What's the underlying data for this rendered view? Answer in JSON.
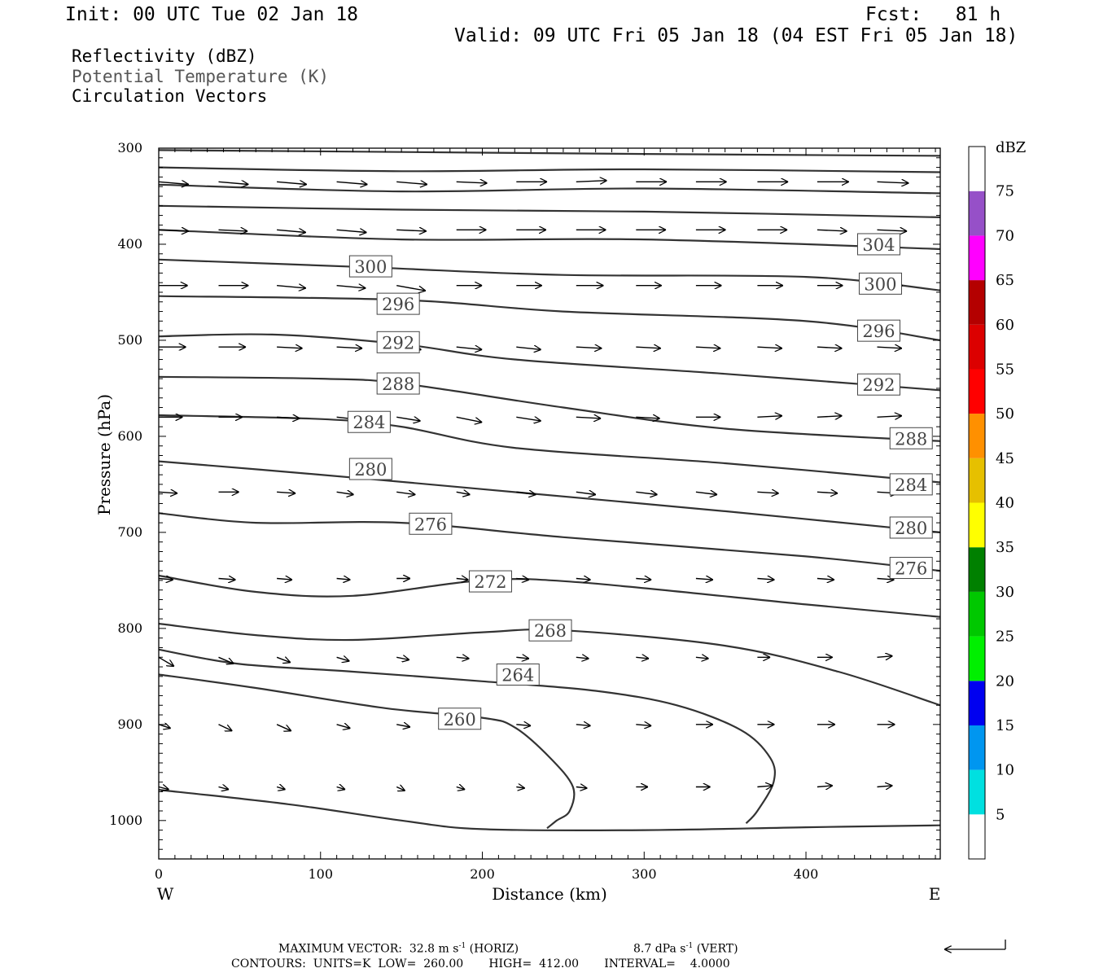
{
  "header": {
    "init": "Init: 00 UTC Tue 02 Jan 18",
    "fcst": "Fcst:   81 h",
    "valid": "Valid: 09 UTC Fri 05 Jan 18 (04 EST Fri 05 Jan 18)"
  },
  "legend_lines": [
    {
      "text": "Reflectivity (dBZ)",
      "color": "#000000"
    },
    {
      "text": "Potential Temperature (K)",
      "color": "#555555"
    },
    {
      "text": "Circulation Vectors",
      "color": "#000000"
    }
  ],
  "footer": {
    "max_vector_prefix": "MAXIMUM VECTOR:",
    "horiz_value": "32.8 m s",
    "horiz_exp": "-1",
    "horiz_tag": "(HORIZ)",
    "vert_value": "8.7 dPa s",
    "vert_exp": "-1",
    "vert_tag": "(VERT)",
    "contours": "CONTOURS:  UNITS=K  LOW=  260.00       HIGH=  412.00       INTERVAL=    4.0000"
  },
  "colorbar": {
    "unit": "dBZ",
    "levels": [
      5,
      10,
      15,
      20,
      25,
      30,
      35,
      40,
      45,
      50,
      55,
      60,
      65,
      70,
      75
    ],
    "colors": [
      "#00e0e0",
      "#0096f0",
      "#0000f0",
      "#00f000",
      "#00c800",
      "#008000",
      "#ffff00",
      "#e6c000",
      "#ff9000",
      "#ff0000",
      "#dc0000",
      "#b40000",
      "#ff00ff",
      "#9650c8"
    ]
  },
  "chart_data": {
    "type": "cross-section",
    "xlabel": "Distance (km)",
    "ylabel": "Pressure (hPa)",
    "xlim": [
      0,
      483
    ],
    "ylim": [
      1040,
      300
    ],
    "xticks": [
      0,
      100,
      200,
      300,
      400
    ],
    "yticks": [
      300,
      400,
      500,
      600,
      700,
      800,
      900,
      1000
    ],
    "left_end_label": "W",
    "right_end_label": "E",
    "isentropes": [
      {
        "pts": [
          [
            0,
            302
          ],
          [
            150,
            304
          ],
          [
            300,
            306
          ],
          [
            483,
            308
          ]
        ]
      },
      {
        "pts": [
          [
            0,
            320
          ],
          [
            150,
            324
          ],
          [
            300,
            322
          ],
          [
            483,
            325
          ]
        ]
      },
      {
        "pts": [
          [
            0,
            338
          ],
          [
            150,
            345
          ],
          [
            300,
            342
          ],
          [
            483,
            347
          ]
        ]
      },
      {
        "pts": [
          [
            0,
            360
          ],
          [
            150,
            364
          ],
          [
            300,
            366
          ],
          [
            483,
            372
          ]
        ]
      },
      {
        "label": "304",
        "pts": [
          [
            0,
            385
          ],
          [
            150,
            395
          ],
          [
            300,
            395
          ],
          [
            483,
            405
          ]
        ],
        "labelAt": [
          [
            445,
            400
          ]
        ]
      },
      {
        "label": "300",
        "pts": [
          [
            0,
            416
          ],
          [
            130,
            424
          ],
          [
            250,
            432
          ],
          [
            400,
            434
          ],
          [
            483,
            448
          ]
        ],
        "labelAt": [
          [
            131,
            423
          ],
          [
            446,
            441
          ]
        ]
      },
      {
        "label": "296",
        "pts": [
          [
            0,
            454
          ],
          [
            150,
            458
          ],
          [
            250,
            470
          ],
          [
            400,
            480
          ],
          [
            483,
            500
          ]
        ],
        "labelAt": [
          [
            148,
            462
          ],
          [
            445,
            490
          ]
        ]
      },
      {
        "label": "292",
        "pts": [
          [
            0,
            496
          ],
          [
            70,
            494
          ],
          [
            150,
            504
          ],
          [
            220,
            520
          ],
          [
            350,
            535
          ],
          [
            483,
            552
          ]
        ],
        "labelAt": [
          [
            148,
            502
          ],
          [
            445,
            546
          ]
        ]
      },
      {
        "label": "288",
        "pts": [
          [
            0,
            538
          ],
          [
            100,
            540
          ],
          [
            150,
            545
          ],
          [
            250,
            570
          ],
          [
            350,
            592
          ],
          [
            483,
            605
          ]
        ],
        "labelAt": [
          [
            148,
            545
          ],
          [
            465,
            602
          ]
        ]
      },
      {
        "label": "284",
        "pts": [
          [
            0,
            578
          ],
          [
            100,
            582
          ],
          [
            150,
            590
          ],
          [
            220,
            612
          ],
          [
            350,
            628
          ],
          [
            483,
            648
          ]
        ],
        "labelAt": [
          [
            130,
            585
          ],
          [
            465,
            650
          ]
        ]
      },
      {
        "label": "280",
        "pts": [
          [
            0,
            626
          ],
          [
            100,
            640
          ],
          [
            200,
            655
          ],
          [
            350,
            678
          ],
          [
            483,
            700
          ]
        ],
        "labelAt": [
          [
            131,
            634
          ],
          [
            465,
            695
          ]
        ]
      },
      {
        "label": "276",
        "pts": [
          [
            0,
            680
          ],
          [
            60,
            690
          ],
          [
            150,
            690
          ],
          [
            250,
            705
          ],
          [
            400,
            725
          ],
          [
            483,
            740
          ]
        ],
        "labelAt": [
          [
            168,
            691
          ],
          [
            465,
            737
          ]
        ]
      },
      {
        "label": "272",
        "pts": [
          [
            0,
            745
          ],
          [
            60,
            762
          ],
          [
            120,
            766
          ],
          [
            200,
            750
          ],
          [
            260,
            752
          ],
          [
            400,
            775
          ],
          [
            483,
            788
          ]
        ],
        "labelAt": [
          [
            205,
            751
          ]
        ]
      },
      {
        "label": "268",
        "pts": [
          [
            0,
            795
          ],
          [
            60,
            807
          ],
          [
            120,
            812
          ],
          [
            200,
            804
          ],
          [
            250,
            802
          ],
          [
            350,
            818
          ],
          [
            420,
            845
          ],
          [
            483,
            880
          ]
        ],
        "labelAt": [
          [
            242,
            802
          ]
        ]
      },
      {
        "label": "264",
        "pts": [
          [
            0,
            822
          ],
          [
            50,
            837
          ],
          [
            120,
            845
          ],
          [
            200,
            855
          ],
          [
            270,
            865
          ],
          [
            320,
            880
          ],
          [
            360,
            906
          ],
          [
            378,
            935
          ],
          [
            380,
            960
          ],
          [
            370,
            990
          ],
          [
            363,
            1003
          ]
        ],
        "labelAt": [
          [
            222,
            848
          ]
        ]
      },
      {
        "label": "260",
        "pts": [
          [
            0,
            848
          ],
          [
            60,
            862
          ],
          [
            140,
            883
          ],
          [
            200,
            893
          ],
          [
            220,
            903
          ],
          [
            242,
            935
          ],
          [
            256,
            965
          ],
          [
            254,
            990
          ],
          [
            246,
            1000
          ],
          [
            240,
            1008
          ]
        ],
        "labelAt": [
          [
            186,
            894
          ]
        ]
      },
      {
        "pts": [
          [
            0,
            968
          ],
          [
            80,
            983
          ],
          [
            150,
            1000
          ],
          [
            200,
            1009
          ],
          [
            300,
            1010
          ],
          [
            400,
            1007
          ],
          [
            483,
            1005
          ]
        ]
      }
    ],
    "vector_rows": [
      {
        "p": 335,
        "x": [
          0,
          37,
          73,
          110,
          147,
          184,
          221,
          258,
          295,
          332,
          370,
          407,
          444
        ],
        "u": [
          35,
          35,
          35,
          36,
          36,
          36,
          36,
          36,
          36,
          36,
          36,
          37,
          37
        ],
        "w": [
          -2,
          -2,
          -2,
          -2,
          -2,
          -1,
          0,
          1,
          0,
          0,
          0,
          0,
          -1
        ]
      },
      {
        "p": 385,
        "x": [
          0,
          37,
          73,
          110,
          147,
          184,
          221,
          258,
          295,
          332,
          370,
          407,
          444
        ],
        "u": [
          35,
          34,
          34,
          35,
          35,
          35,
          35,
          35,
          35,
          35,
          35,
          35,
          35
        ],
        "w": [
          -1,
          -1,
          -2,
          -2,
          -1,
          0,
          0,
          0,
          0,
          0,
          0,
          -1,
          -1
        ]
      },
      {
        "p": 443,
        "x": [
          0,
          37,
          73,
          110,
          147,
          184,
          221,
          258,
          295,
          332,
          370,
          407,
          444
        ],
        "u": [
          34,
          35,
          34,
          34,
          34,
          30,
          30,
          32,
          30,
          30,
          30,
          30,
          30
        ],
        "w": [
          0,
          0,
          -2,
          -2,
          -4,
          0,
          0,
          0,
          0,
          0,
          0,
          0,
          0
        ]
      },
      {
        "p": 507,
        "x": [
          0,
          37,
          73,
          110,
          147,
          184,
          221,
          258,
          295,
          332,
          370,
          407,
          444
        ],
        "u": [
          32,
          32,
          30,
          30,
          29,
          30,
          29,
          30,
          29,
          29,
          29,
          29,
          29
        ],
        "w": [
          0,
          0,
          -1,
          -1,
          -2,
          -2,
          -2,
          -1,
          -1,
          -1,
          -1,
          -1,
          -1
        ]
      },
      {
        "p": 580,
        "x": [
          0,
          37,
          73,
          110,
          147,
          184,
          221,
          258,
          295,
          332,
          370,
          407,
          444
        ],
        "u": [
          28,
          28,
          27,
          27,
          28,
          30,
          29,
          29,
          28,
          29,
          29,
          29,
          29
        ],
        "w": [
          0,
          0,
          -1,
          -2,
          -3,
          -4,
          -3,
          -1,
          -1,
          0,
          1,
          1,
          1
        ]
      },
      {
        "p": 658,
        "x": [
          0,
          37,
          73,
          110,
          147,
          184,
          221,
          258,
          295,
          332,
          370,
          407,
          444
        ],
        "u": [
          22,
          24,
          22,
          20,
          22,
          16,
          23,
          23,
          25,
          25,
          25,
          24,
          24
        ],
        "w": [
          -1,
          0,
          -1,
          -2,
          -2,
          -2,
          -2,
          -2,
          -2,
          -2,
          -1,
          -1,
          -1
        ]
      },
      {
        "p": 748,
        "x": [
          0,
          37,
          73,
          110,
          147,
          184,
          221,
          258,
          295,
          332,
          370,
          407,
          444
        ],
        "u": [
          17,
          20,
          18,
          16,
          16,
          14,
          15,
          17,
          18,
          20,
          20,
          20,
          20
        ],
        "w": [
          -1,
          -1,
          -1,
          -1,
          0,
          -1,
          -1,
          -1,
          -1,
          -1,
          -1,
          -1,
          -1
        ]
      },
      {
        "p": 830,
        "x": [
          0,
          37,
          73,
          110,
          147,
          184,
          221,
          258,
          295,
          332,
          370,
          407,
          444
        ],
        "u": [
          18,
          18,
          16,
          15,
          15,
          15,
          15,
          15,
          15,
          15,
          15,
          18,
          18
        ],
        "w": [
          -7,
          -5,
          -4,
          -3,
          -2,
          -1,
          -1,
          -1,
          -1,
          -1,
          0,
          0,
          1
        ]
      },
      {
        "p": 900,
        "x": [
          0,
          37,
          73,
          110,
          147,
          184,
          221,
          258,
          295,
          332,
          370,
          407,
          444
        ],
        "u": [
          14,
          16,
          17,
          16,
          16,
          17,
          17,
          17,
          18,
          20,
          20,
          21,
          21
        ],
        "w": [
          -3,
          -5,
          -5,
          -3,
          -2,
          -1,
          -1,
          -1,
          -1,
          0,
          0,
          0,
          0
        ]
      },
      {
        "p": 965,
        "x": [
          0,
          37,
          73,
          110,
          147,
          184,
          221,
          258,
          295,
          332,
          370,
          407,
          444
        ],
        "u": [
          12,
          12,
          10,
          10,
          10,
          10,
          10,
          13,
          14,
          17,
          18,
          18,
          18
        ],
        "w": [
          -2,
          -2,
          -2,
          -2,
          -3,
          -2,
          -1,
          -1,
          0,
          0,
          1,
          1,
          1
        ]
      }
    ]
  }
}
